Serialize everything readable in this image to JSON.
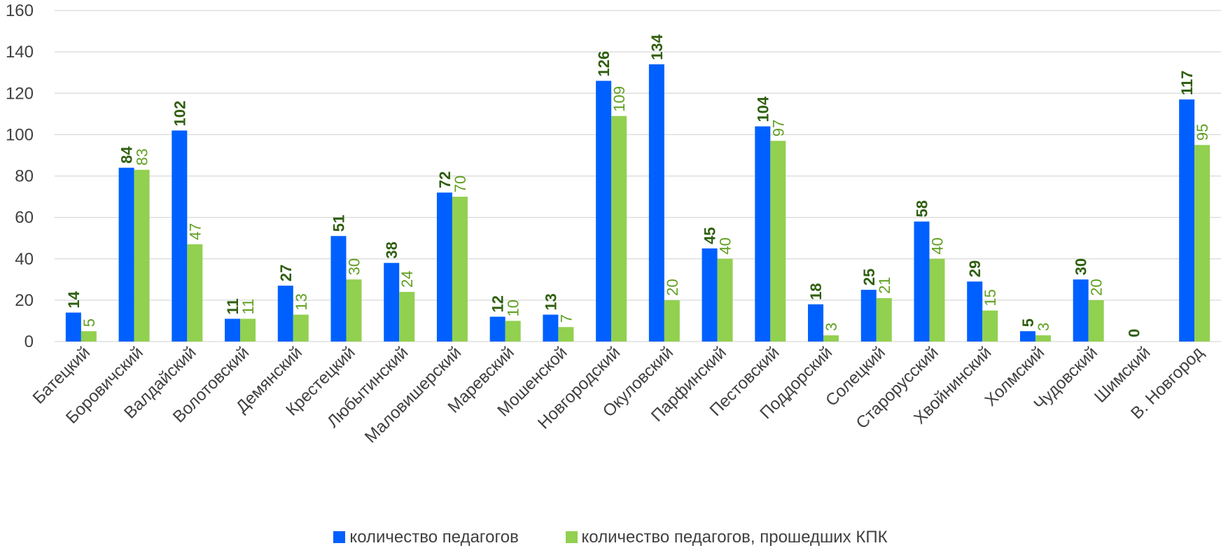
{
  "chart_data": {
    "type": "bar",
    "categories": [
      "Батецкий",
      "Боровичский",
      "Валдайский",
      "Волотовский",
      "Демянский",
      "Крестецкий",
      "Любытинский",
      "Маловишерский",
      "Маревский",
      "Мошенской",
      "Новгородский",
      "Окуловский",
      "Парфинский",
      "Пестовский",
      "Поддорский",
      "Солецкий",
      "Старорусский",
      "Хвойнинский",
      "Холмский",
      "Чудовский",
      "Шимский",
      "В. Новгород"
    ],
    "series": [
      {
        "name": "количество педагогов",
        "color": "#0060ff",
        "values": [
          14,
          84,
          102,
          11,
          27,
          51,
          38,
          72,
          12,
          13,
          126,
          134,
          45,
          104,
          18,
          25,
          58,
          29,
          5,
          30,
          0,
          117
        ]
      },
      {
        "name": "количество педагогов, прошедших  КПК",
        "color": "#92d050",
        "values": [
          5,
          83,
          47,
          11,
          13,
          30,
          24,
          70,
          10,
          7,
          109,
          20,
          40,
          97,
          3,
          21,
          40,
          15,
          3,
          20,
          null,
          95
        ]
      }
    ],
    "ylim": [
      0,
      160
    ],
    "yticks": [
      0,
      20,
      40,
      60,
      80,
      100,
      120,
      140,
      160
    ],
    "grid": true,
    "legend_position": "bottom"
  },
  "legend": {
    "s1": "количество педагогов",
    "s2": "количество педагогов, прошедших  КПК"
  },
  "colors": {
    "s1": "#0060ff",
    "s2": "#92d050",
    "grid": "#d9d9d9"
  }
}
